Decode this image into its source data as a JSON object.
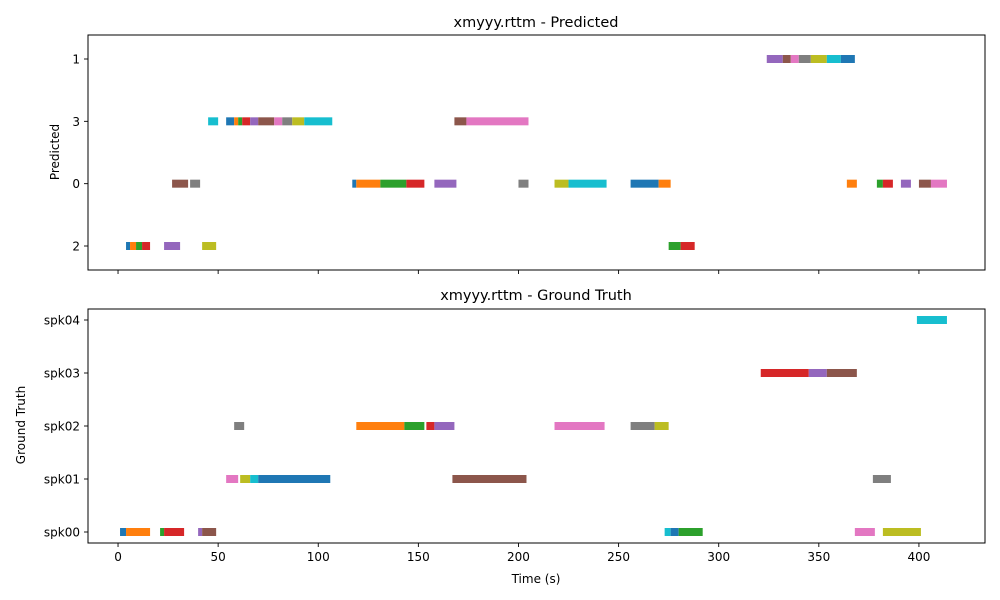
{
  "chart_data": [
    {
      "type": "timeline",
      "title": "xmyyy.rttm - Predicted",
      "ylabel": "Predicted",
      "xlabel": "",
      "xlim": [
        -15,
        433
      ],
      "categories": [
        "2",
        "0",
        "3",
        "1"
      ],
      "show_x_tick_labels": false,
      "segments": [
        {
          "row": "2",
          "start": 4,
          "end": 6,
          "color": "#1f77b4"
        },
        {
          "row": "2",
          "start": 6,
          "end": 9,
          "color": "#ff7f0e"
        },
        {
          "row": "2",
          "start": 9,
          "end": 12,
          "color": "#2ca02c"
        },
        {
          "row": "2",
          "start": 12,
          "end": 16,
          "color": "#d62728"
        },
        {
          "row": "2",
          "start": 23,
          "end": 31,
          "color": "#9467bd"
        },
        {
          "row": "2",
          "start": 42,
          "end": 49,
          "color": "#bcbd22"
        },
        {
          "row": "2",
          "start": 275,
          "end": 281,
          "color": "#2ca02c"
        },
        {
          "row": "2",
          "start": 281,
          "end": 288,
          "color": "#d62728"
        },
        {
          "row": "0",
          "start": 27,
          "end": 35,
          "color": "#8c564b"
        },
        {
          "row": "0",
          "start": 36,
          "end": 41,
          "color": "#7f7f7f"
        },
        {
          "row": "0",
          "start": 117,
          "end": 119,
          "color": "#1f77b4"
        },
        {
          "row": "0",
          "start": 119,
          "end": 131,
          "color": "#ff7f0e"
        },
        {
          "row": "0",
          "start": 131,
          "end": 144,
          "color": "#2ca02c"
        },
        {
          "row": "0",
          "start": 144,
          "end": 153,
          "color": "#d62728"
        },
        {
          "row": "0",
          "start": 158,
          "end": 169,
          "color": "#9467bd"
        },
        {
          "row": "0",
          "start": 200,
          "end": 205,
          "color": "#7f7f7f"
        },
        {
          "row": "0",
          "start": 218,
          "end": 225,
          "color": "#bcbd22"
        },
        {
          "row": "0",
          "start": 225,
          "end": 244,
          "color": "#17becf"
        },
        {
          "row": "0",
          "start": 256,
          "end": 270,
          "color": "#1f77b4"
        },
        {
          "row": "0",
          "start": 270,
          "end": 276,
          "color": "#ff7f0e"
        },
        {
          "row": "0",
          "start": 364,
          "end": 369,
          "color": "#ff7f0e"
        },
        {
          "row": "0",
          "start": 379,
          "end": 382,
          "color": "#2ca02c"
        },
        {
          "row": "0",
          "start": 382,
          "end": 387,
          "color": "#d62728"
        },
        {
          "row": "0",
          "start": 391,
          "end": 396,
          "color": "#9467bd"
        },
        {
          "row": "0",
          "start": 400,
          "end": 406,
          "color": "#8c564b"
        },
        {
          "row": "0",
          "start": 406,
          "end": 414,
          "color": "#e377c2"
        },
        {
          "row": "3",
          "start": 45,
          "end": 50,
          "color": "#17becf"
        },
        {
          "row": "3",
          "start": 54,
          "end": 58,
          "color": "#1f77b4"
        },
        {
          "row": "3",
          "start": 58,
          "end": 60,
          "color": "#ff7f0e"
        },
        {
          "row": "3",
          "start": 60,
          "end": 62,
          "color": "#2ca02c"
        },
        {
          "row": "3",
          "start": 62,
          "end": 66,
          "color": "#d62728"
        },
        {
          "row": "3",
          "start": 66,
          "end": 70,
          "color": "#9467bd"
        },
        {
          "row": "3",
          "start": 70,
          "end": 78,
          "color": "#8c564b"
        },
        {
          "row": "3",
          "start": 78,
          "end": 82,
          "color": "#e377c2"
        },
        {
          "row": "3",
          "start": 82,
          "end": 87,
          "color": "#7f7f7f"
        },
        {
          "row": "3",
          "start": 87,
          "end": 93,
          "color": "#bcbd22"
        },
        {
          "row": "3",
          "start": 93,
          "end": 107,
          "color": "#17becf"
        },
        {
          "row": "3",
          "start": 168,
          "end": 174,
          "color": "#8c564b"
        },
        {
          "row": "3",
          "start": 174,
          "end": 205,
          "color": "#e377c2"
        },
        {
          "row": "1",
          "start": 324,
          "end": 332,
          "color": "#9467bd"
        },
        {
          "row": "1",
          "start": 332,
          "end": 336,
          "color": "#8c564b"
        },
        {
          "row": "1",
          "start": 336,
          "end": 340,
          "color": "#e377c2"
        },
        {
          "row": "1",
          "start": 340,
          "end": 346,
          "color": "#7f7f7f"
        },
        {
          "row": "1",
          "start": 346,
          "end": 354,
          "color": "#bcbd22"
        },
        {
          "row": "1",
          "start": 354,
          "end": 361,
          "color": "#17becf"
        },
        {
          "row": "1",
          "start": 361,
          "end": 368,
          "color": "#1f77b4"
        }
      ]
    },
    {
      "type": "timeline",
      "title": "xmyyy.rttm - Ground Truth",
      "ylabel": "Ground Truth",
      "xlabel": "Time (s)",
      "xlim": [
        -15,
        433
      ],
      "xticks": [
        0,
        50,
        100,
        150,
        200,
        250,
        300,
        350,
        400
      ],
      "categories": [
        "spk00",
        "spk01",
        "spk02",
        "spk03",
        "spk04"
      ],
      "show_x_tick_labels": true,
      "segments": [
        {
          "row": "spk00",
          "start": 1,
          "end": 4,
          "color": "#1f77b4"
        },
        {
          "row": "spk00",
          "start": 4,
          "end": 16,
          "color": "#ff7f0e"
        },
        {
          "row": "spk00",
          "start": 21,
          "end": 23,
          "color": "#2ca02c"
        },
        {
          "row": "spk00",
          "start": 23,
          "end": 33,
          "color": "#d62728"
        },
        {
          "row": "spk00",
          "start": 40,
          "end": 42,
          "color": "#9467bd"
        },
        {
          "row": "spk00",
          "start": 42,
          "end": 49,
          "color": "#8c564b"
        },
        {
          "row": "spk00",
          "start": 273,
          "end": 276,
          "color": "#17becf"
        },
        {
          "row": "spk00",
          "start": 276,
          "end": 280,
          "color": "#1f77b4"
        },
        {
          "row": "spk00",
          "start": 280,
          "end": 292,
          "color": "#2ca02c"
        },
        {
          "row": "spk00",
          "start": 368,
          "end": 378,
          "color": "#e377c2"
        },
        {
          "row": "spk00",
          "start": 382,
          "end": 401,
          "color": "#bcbd22"
        },
        {
          "row": "spk01",
          "start": 54,
          "end": 60,
          "color": "#e377c2"
        },
        {
          "row": "spk01",
          "start": 61,
          "end": 66,
          "color": "#bcbd22"
        },
        {
          "row": "spk01",
          "start": 66,
          "end": 70,
          "color": "#17becf"
        },
        {
          "row": "spk01",
          "start": 70,
          "end": 106,
          "color": "#1f77b4"
        },
        {
          "row": "spk01",
          "start": 167,
          "end": 204,
          "color": "#8c564b"
        },
        {
          "row": "spk01",
          "start": 377,
          "end": 386,
          "color": "#7f7f7f"
        },
        {
          "row": "spk02",
          "start": 58,
          "end": 63,
          "color": "#7f7f7f"
        },
        {
          "row": "spk02",
          "start": 119,
          "end": 143,
          "color": "#ff7f0e"
        },
        {
          "row": "spk02",
          "start": 143,
          "end": 153,
          "color": "#2ca02c"
        },
        {
          "row": "spk02",
          "start": 154,
          "end": 158,
          "color": "#d62728"
        },
        {
          "row": "spk02",
          "start": 158,
          "end": 168,
          "color": "#9467bd"
        },
        {
          "row": "spk02",
          "start": 218,
          "end": 243,
          "color": "#e377c2"
        },
        {
          "row": "spk02",
          "start": 256,
          "end": 268,
          "color": "#7f7f7f"
        },
        {
          "row": "spk02",
          "start": 268,
          "end": 275,
          "color": "#bcbd22"
        },
        {
          "row": "spk03",
          "start": 321,
          "end": 345,
          "color": "#d62728"
        },
        {
          "row": "spk03",
          "start": 345,
          "end": 354,
          "color": "#9467bd"
        },
        {
          "row": "spk03",
          "start": 354,
          "end": 369,
          "color": "#8c564b"
        },
        {
          "row": "spk04",
          "start": 399,
          "end": 414,
          "color": "#17becf"
        }
      ]
    }
  ]
}
